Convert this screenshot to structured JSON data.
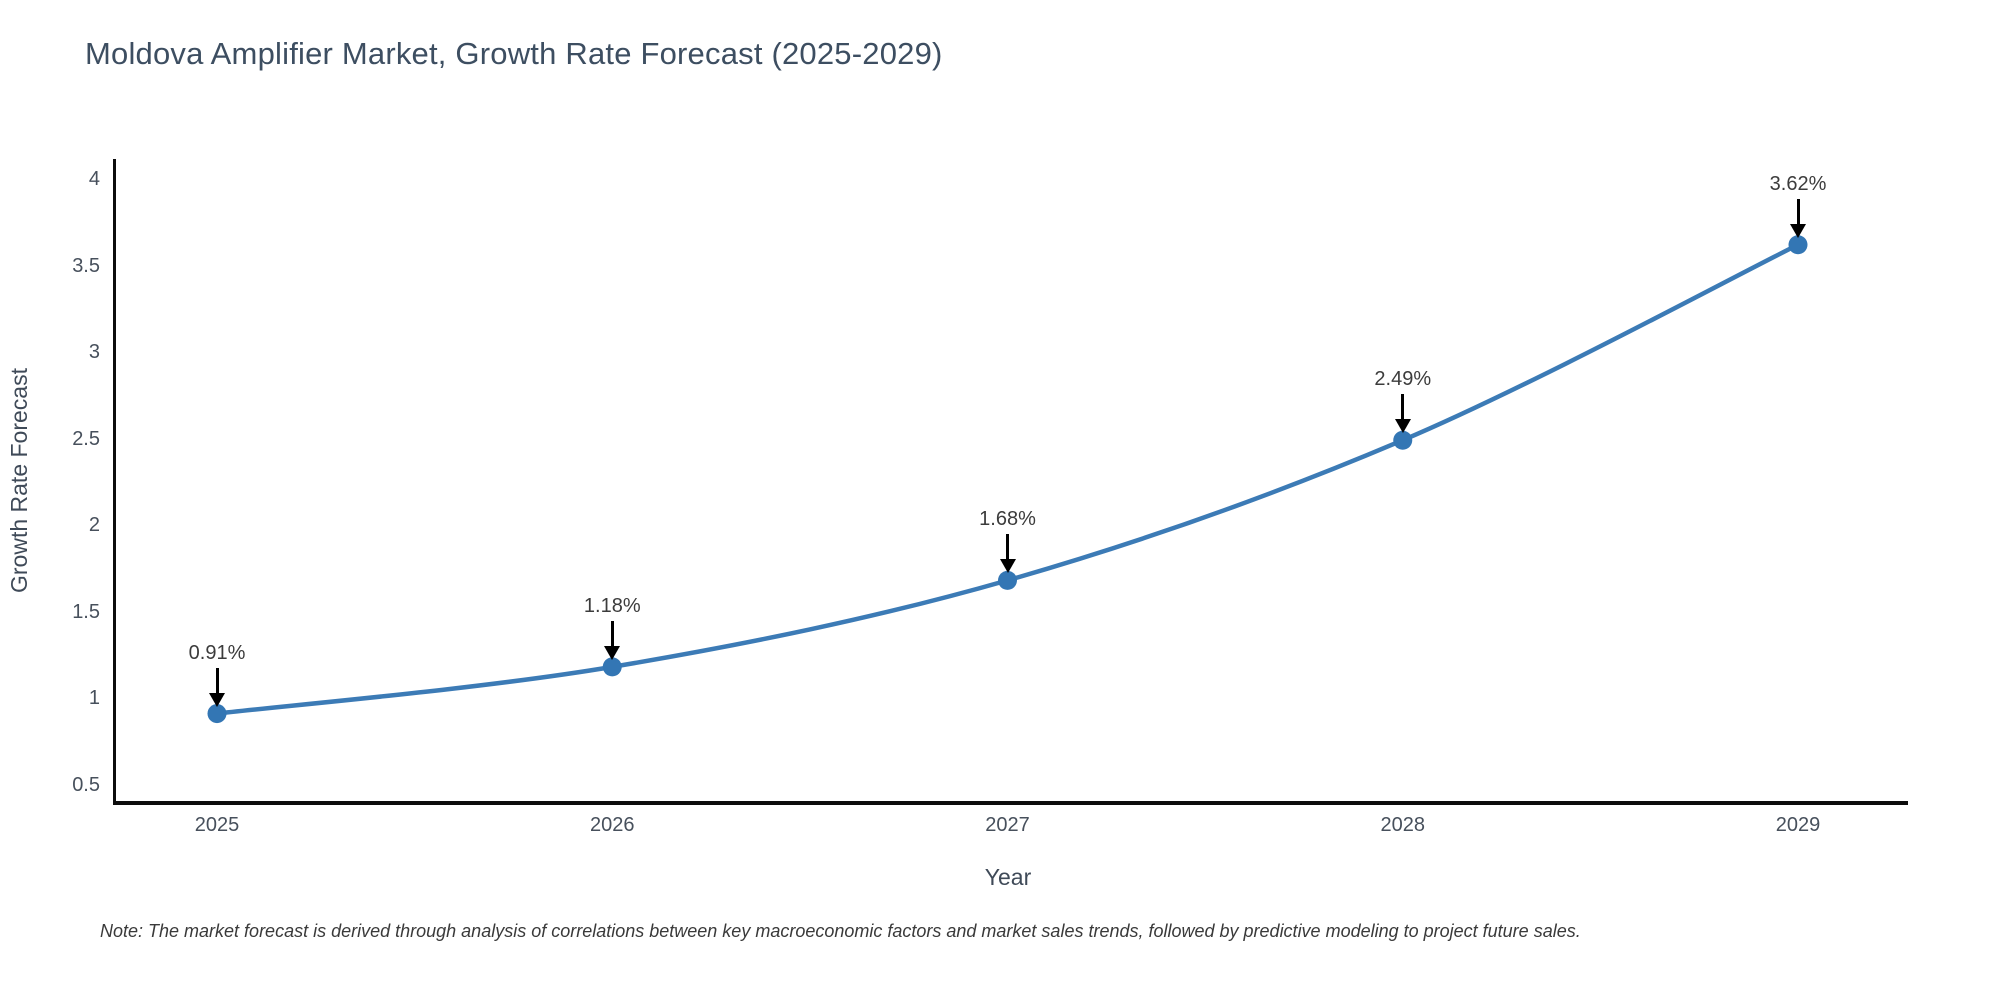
{
  "chart_data": {
    "type": "line",
    "title": "Moldova Amplifier Market, Growth Rate Forecast (2025-2029)",
    "xlabel": "Year",
    "ylabel": "Growth Rate Forecast",
    "categories": [
      "2025",
      "2026",
      "2027",
      "2028",
      "2029"
    ],
    "series": [
      {
        "name": "Growth Rate Forecast",
        "values": [
          0.91,
          1.18,
          1.68,
          2.49,
          3.62
        ],
        "point_labels": [
          "0.91%",
          "1.18%",
          "1.68%",
          "2.49%",
          "3.62%"
        ]
      }
    ],
    "yticks": [
      "4",
      "3.5",
      "3",
      "2.5",
      "2",
      "1.5",
      "1",
      "0.5"
    ],
    "ytick_values": [
      4,
      3.5,
      3,
      2.5,
      2,
      1.5,
      1,
      0.5
    ],
    "ylim": [
      0.41,
      4.12
    ],
    "grid": false,
    "legend_position": "none",
    "colors": {
      "line": "#3c7bb6",
      "marker": "#3376b4",
      "annotation_arrow": "#000000",
      "axis_spine": "#0d0d0d",
      "title_text": "#3d4e61",
      "tick_text": "#47505c"
    },
    "note": "Note: The market forecast is derived through analysis of correlations between key macroeconomic factors and market sales trends, followed by predictive modeling to project future sales."
  }
}
